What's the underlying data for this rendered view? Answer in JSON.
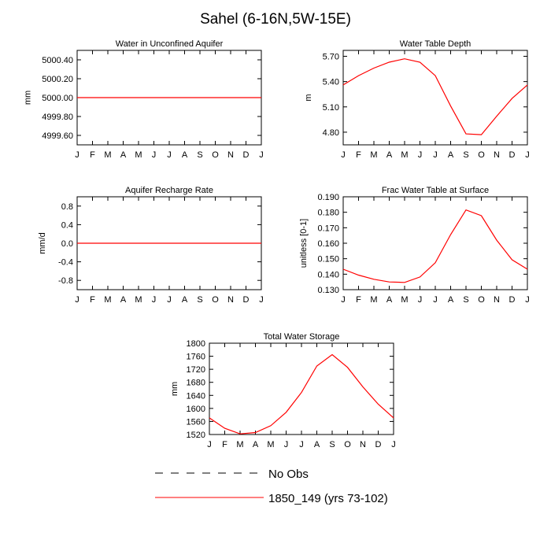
{
  "page": {
    "title": "Sahel (6-16N,5W-15E)"
  },
  "months": [
    "J",
    "F",
    "M",
    "A",
    "M",
    "J",
    "J",
    "A",
    "S",
    "O",
    "N",
    "D",
    "J"
  ],
  "line_color": "#ff0000",
  "chart_data": [
    {
      "type": "line",
      "title": "Water in Unconfined Aquifer",
      "ylabel": "mm",
      "categories": [
        "J",
        "F",
        "M",
        "A",
        "M",
        "J",
        "J",
        "A",
        "S",
        "O",
        "N",
        "D",
        "J"
      ],
      "ylim": [
        4999.5,
        5000.5
      ],
      "yticks": [
        4999.6,
        4999.8,
        5000.0,
        5000.2,
        5000.4
      ],
      "ytick_labels": [
        "4999.60",
        "4999.80",
        "5000.00",
        "5000.20",
        "5000.40"
      ],
      "series": [
        {
          "values": [
            5000,
            5000,
            5000,
            5000,
            5000,
            5000,
            5000,
            5000,
            5000,
            5000,
            5000,
            5000,
            5000
          ]
        }
      ]
    },
    {
      "type": "line",
      "title": "Water Table Depth",
      "ylabel": "m",
      "categories": [
        "J",
        "F",
        "M",
        "A",
        "M",
        "J",
        "J",
        "A",
        "S",
        "O",
        "N",
        "D",
        "J"
      ],
      "ylim": [
        4.65,
        5.77
      ],
      "yticks": [
        4.8,
        5.1,
        5.4,
        5.7
      ],
      "ytick_labels": [
        "4.80",
        "5.10",
        "5.40",
        "5.70"
      ],
      "series": [
        {
          "values": [
            5.36,
            5.47,
            5.56,
            5.63,
            5.67,
            5.63,
            5.47,
            5.11,
            4.78,
            4.77,
            4.99,
            5.2,
            5.36
          ]
        }
      ]
    },
    {
      "type": "line",
      "title": "Aquifer Recharge Rate",
      "ylabel": "mm/d",
      "categories": [
        "J",
        "F",
        "M",
        "A",
        "M",
        "J",
        "J",
        "A",
        "S",
        "O",
        "N",
        "D",
        "J"
      ],
      "ylim": [
        -1.0,
        1.0
      ],
      "yticks": [
        -0.8,
        -0.4,
        0.0,
        0.4,
        0.8
      ],
      "ytick_labels": [
        "-0.8",
        "-0.4",
        "0.0",
        "0.4",
        "0.8"
      ],
      "series": [
        {
          "values": [
            0,
            0,
            0,
            0,
            0,
            0,
            0,
            0,
            0,
            0,
            0,
            0,
            0
          ]
        }
      ]
    },
    {
      "type": "line",
      "title": "Frac Water Table at Surface",
      "ylabel": "unitless [0-1]",
      "categories": [
        "J",
        "F",
        "M",
        "A",
        "M",
        "J",
        "J",
        "A",
        "S",
        "O",
        "N",
        "D",
        "J"
      ],
      "ylim": [
        0.13,
        0.19
      ],
      "yticks": [
        0.13,
        0.14,
        0.15,
        0.16,
        0.17,
        0.18,
        0.19
      ],
      "ytick_labels": [
        "0.130",
        "0.140",
        "0.150",
        "0.160",
        "0.170",
        "0.180",
        "0.190"
      ],
      "series": [
        {
          "values": [
            0.1432,
            0.1394,
            0.1367,
            0.135,
            0.1347,
            0.1382,
            0.1474,
            0.1656,
            0.1815,
            0.1778,
            0.162,
            0.1493,
            0.1432
          ]
        }
      ]
    },
    {
      "type": "line",
      "title": "Total Water Storage",
      "ylabel": "mm",
      "categories": [
        "J",
        "F",
        "M",
        "A",
        "M",
        "J",
        "J",
        "A",
        "S",
        "O",
        "N",
        "D",
        "J"
      ],
      "ylim": [
        1520,
        1800
      ],
      "yticks": [
        1520,
        1560,
        1600,
        1640,
        1680,
        1720,
        1760,
        1800
      ],
      "ytick_labels": [
        "1520",
        "1560",
        "1600",
        "1640",
        "1680",
        "1720",
        "1760",
        "1800"
      ],
      "series": [
        {
          "values": [
            1571,
            1539,
            1522,
            1526,
            1547,
            1588,
            1649,
            1730,
            1765,
            1726,
            1666,
            1613,
            1571
          ]
        }
      ]
    }
  ],
  "legend": [
    {
      "label": "No Obs",
      "style": "dashed",
      "color": "#000000"
    },
    {
      "label": "1850_149 (yrs 73-102)",
      "style": "solid",
      "color": "#ff0000"
    }
  ]
}
